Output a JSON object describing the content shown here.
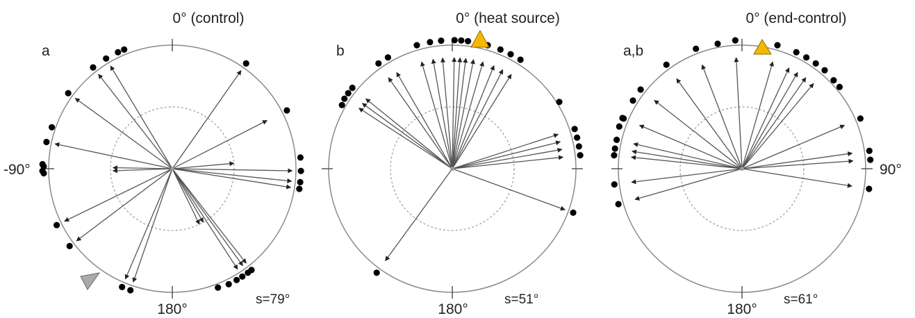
{
  "colors": {
    "line": "#555555",
    "circle": "#8a8a8a",
    "dot": "#000000",
    "heat_marker": "#f5b800",
    "control_marker": "#aaaaaa"
  },
  "panels": [
    {
      "letter": "a",
      "top_label": "0° (control)",
      "bottom_label": "180°",
      "stat": "s=79°",
      "marker": "grey-triangle",
      "arrows": [
        {
          "angle": 35,
          "length": 0.97
        },
        {
          "angle": 63,
          "length": 0.86
        },
        {
          "angle": 85,
          "length": 0.5
        },
        {
          "angle": 91,
          "length": 0.97
        },
        {
          "angle": 96,
          "length": 0.97
        },
        {
          "angle": 99,
          "length": 0.97
        },
        {
          "angle": 142,
          "length": 0.97
        },
        {
          "angle": 144,
          "length": 0.97
        },
        {
          "angle": 147,
          "length": 0.97
        },
        {
          "angle": 150,
          "length": 0.5
        },
        {
          "angle": 154,
          "length": 0.5
        },
        {
          "angle": 199,
          "length": 0.97
        },
        {
          "angle": 203,
          "length": 0.97
        },
        {
          "angle": 233,
          "length": 0.97
        },
        {
          "angle": 244,
          "length": 0.97
        },
        {
          "angle": 268,
          "length": 0.48
        },
        {
          "angle": 271,
          "length": 0.48
        },
        {
          "angle": 282,
          "length": 0.97
        },
        {
          "angle": 306,
          "length": 0.97
        },
        {
          "angle": 322,
          "length": 0.97
        },
        {
          "angle": 329,
          "length": 0.97
        }
      ],
      "extra_dots": [
        {
          "angle": -91,
          "r": 1.05
        },
        {
          "angle": -88,
          "r": 1.05
        },
        {
          "angle": -71,
          "r": 1.03
        },
        {
          "angle": -25,
          "r": 1.04
        },
        {
          "angle": -22,
          "r": 1.04
        },
        {
          "angle": 159,
          "r": 1.03
        }
      ]
    },
    {
      "letter": "b",
      "top_label": "0° (heat source)",
      "bottom_label": "180°",
      "stat": "s=51°",
      "marker": "yellow-triangle",
      "arrows": [
        {
          "angle": 4,
          "length": 0.9
        },
        {
          "angle": 7,
          "length": 0.9
        },
        {
          "angle": 11,
          "length": 0.9
        },
        {
          "angle": 16,
          "length": 0.9
        },
        {
          "angle": 22,
          "length": 0.9
        },
        {
          "angle": 27,
          "length": 0.9
        },
        {
          "angle": 32,
          "length": 0.9
        },
        {
          "angle": 72,
          "length": 0.9
        },
        {
          "angle": 76,
          "length": 0.9
        },
        {
          "angle": 80,
          "length": 0.9
        },
        {
          "angle": 84,
          "length": 0.9
        },
        {
          "angle": 110,
          "length": 0.97
        },
        {
          "angle": 216,
          "length": 0.92
        },
        {
          "angle": -57,
          "length": 0.9
        },
        {
          "angle": -54,
          "length": 0.9
        },
        {
          "angle": -51,
          "length": 0.9
        },
        {
          "angle": -35,
          "length": 0.9
        },
        {
          "angle": -30,
          "length": 0.9
        },
        {
          "angle": -16,
          "length": 0.9
        },
        {
          "angle": -10,
          "length": 0.9
        },
        {
          "angle": -5,
          "length": 0.9
        },
        {
          "angle": 1,
          "length": 0.9
        }
      ],
      "extra_dots": [
        {
          "angle": -60,
          "r": 1.03
        },
        {
          "angle": 58,
          "r": 1.02
        }
      ]
    },
    {
      "letter": "a,b",
      "top_label": "0° (end-control)",
      "bottom_label": "180°",
      "stat": "s=61°",
      "side_label": "90°",
      "marker": "yellow-triangle",
      "arrows": [
        {
          "angle": -3,
          "length": 0.9
        },
        {
          "angle": 16,
          "length": 0.9
        },
        {
          "angle": 25,
          "length": 0.9
        },
        {
          "angle": 30,
          "length": 0.9
        },
        {
          "angle": 35,
          "length": 0.9
        },
        {
          "angle": 40,
          "length": 0.9
        },
        {
          "angle": 67,
          "length": 0.9
        },
        {
          "angle": 82,
          "length": 0.9
        },
        {
          "angle": 86,
          "length": 0.9
        },
        {
          "angle": 99,
          "length": 0.9
        },
        {
          "angle": 254,
          "length": 0.9
        },
        {
          "angle": 263,
          "length": 0.9
        },
        {
          "angle": 276,
          "length": 0.9
        },
        {
          "angle": 279,
          "length": 0.9
        },
        {
          "angle": 283,
          "length": 0.9
        },
        {
          "angle": 293,
          "length": 0.9
        },
        {
          "angle": 308,
          "length": 0.9
        },
        {
          "angle": 324,
          "length": 0.9
        },
        {
          "angle": 339,
          "length": 0.9
        }
      ],
      "extra_dots": [
        {
          "angle": -71,
          "r": 1.05
        },
        {
          "angle": -67,
          "r": 1.05
        },
        {
          "angle": -58,
          "r": 1.04
        },
        {
          "angle": -11,
          "r": 1.03
        },
        {
          "angle": 46,
          "r": 1.03
        },
        {
          "angle": 50,
          "r": 1.03
        }
      ]
    }
  ],
  "side_label_left": "-90°"
}
